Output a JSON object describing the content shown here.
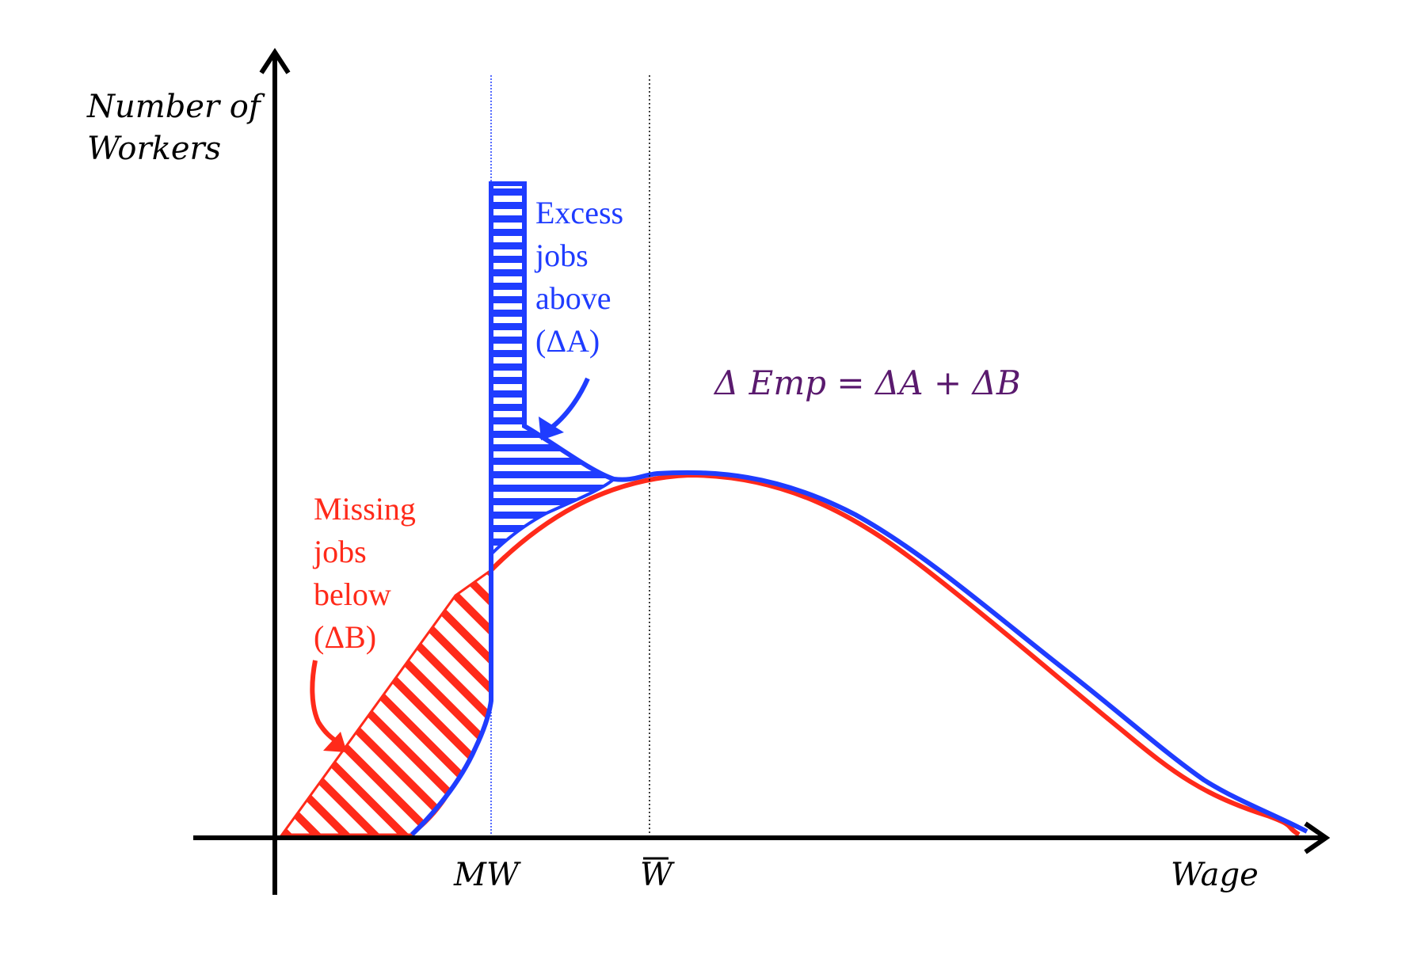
{
  "axes": {
    "y_label_line1": "Number of",
    "y_label_line2": "Workers",
    "x_label": "Wage",
    "tick_mw": "MW",
    "tick_wbar": "W"
  },
  "annotations": {
    "excess": {
      "lines": [
        "Excess",
        "jobs",
        "above",
        "(ΔA)"
      ],
      "color": "#1f3cff"
    },
    "missing": {
      "lines": [
        "Missing",
        "jobs",
        "below",
        "(ΔB)"
      ],
      "color": "#ff2a1a"
    },
    "equation": {
      "text": "Δ Emp = ΔA + ΔB",
      "color": "#5a1a6e"
    }
  },
  "colors": {
    "blue": "#1f3cff",
    "red": "#ff2a1a",
    "axis": "#000000"
  }
}
